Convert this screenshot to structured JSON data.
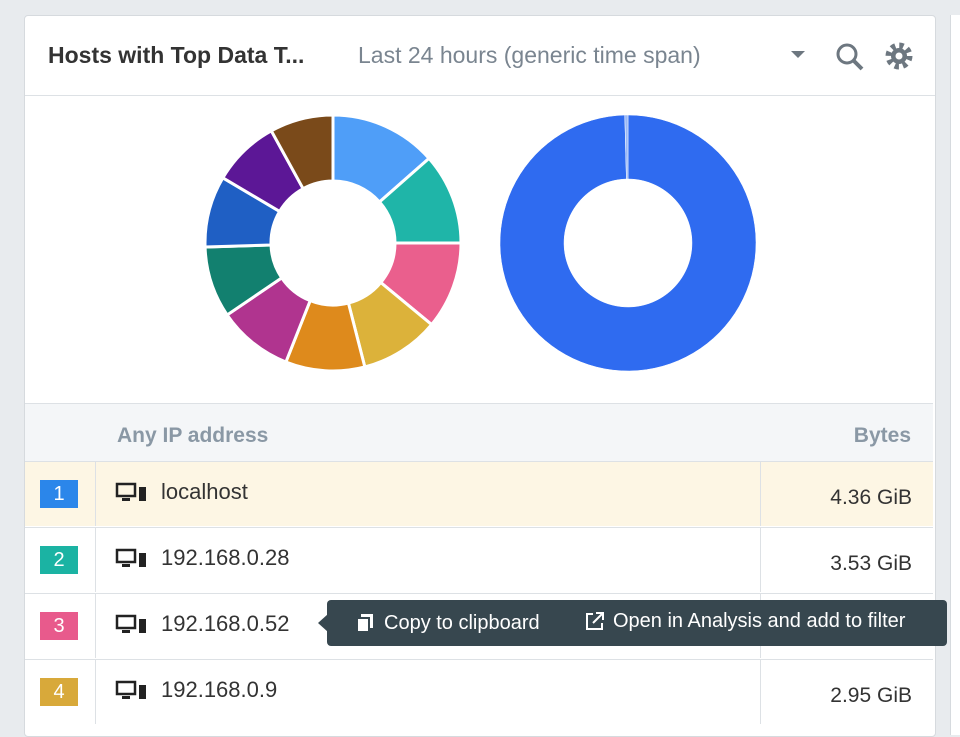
{
  "header": {
    "title": "Hosts with Top Data T...",
    "time_span": "Last 24 hours (generic time span)"
  },
  "charts": [
    {
      "type": "donut",
      "values": [
        13.5,
        11.5,
        11,
        10,
        10,
        9.5,
        9,
        9,
        8.5,
        8
      ],
      "colors": [
        "#4f9ef8",
        "#1fb5a8",
        "#ea5f8d",
        "#dcb23a",
        "#de8a1c",
        "#b0348f",
        "#12806f",
        "#1f5fc4",
        "#5c1796",
        "#7a4a1a"
      ]
    },
    {
      "type": "donut",
      "values": [
        99.6,
        0.4
      ],
      "colors": [
        "#2f6bf0",
        "#9ab8f6"
      ]
    }
  ],
  "table": {
    "columns": [
      "Any IP address",
      "Bytes"
    ],
    "rows": [
      {
        "rank": 1,
        "host": "localhost",
        "bytes": "4.36 GiB",
        "color": "#2b86ea"
      },
      {
        "rank": 2,
        "host": "192.168.0.28",
        "bytes": "3.53 GiB",
        "color": "#1bb3a3"
      },
      {
        "rank": 3,
        "host": "192.168.0.52",
        "color": "#e85a8c"
      },
      {
        "rank": 4,
        "host": "192.168.0.9",
        "bytes": "2.95 GiB",
        "color": "#d8a93a"
      }
    ]
  },
  "tooltip": {
    "actions": [
      "Copy to clipboard",
      "Open in Analysis and add to filter"
    ]
  }
}
